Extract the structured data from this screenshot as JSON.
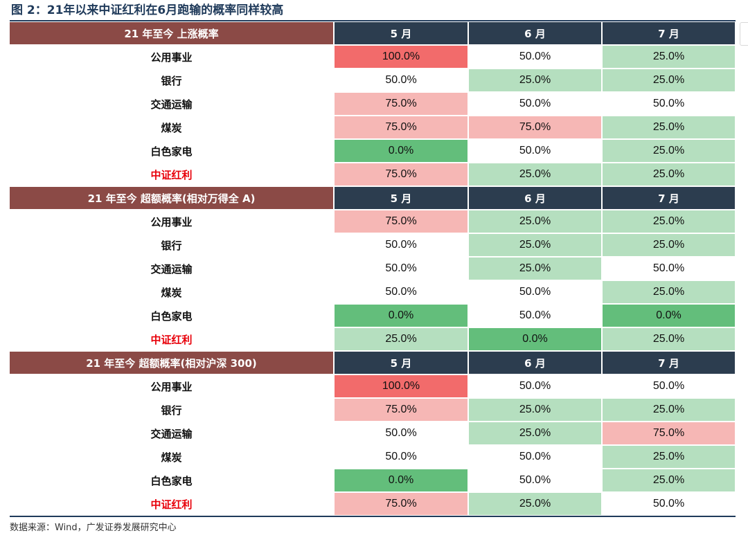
{
  "title": "图 2：21年以来中证红利在6月跑输的概率同样较高",
  "source": "数据来源：Wind，广发证券发展研究中心",
  "months": [
    "5 月",
    "6 月",
    "7 月"
  ],
  "colors": {
    "header_section": "#8b4a46",
    "header_month": "#2c3d4f",
    "red_strong": "#f26b6b",
    "red_light": "#f6b7b5",
    "green_light": "#b5dfbf",
    "green_strong": "#63be7b",
    "none": "#ffffff",
    "highlight_text": "#e8000a"
  },
  "sections": [
    {
      "title": "21 年至今 上涨概率",
      "rows": [
        {
          "label": "公用事业",
          "highlight": false,
          "values": [
            "100.0%",
            "50.0%",
            "25.0%"
          ],
          "fills": [
            "red_strong",
            "none",
            "green_light"
          ]
        },
        {
          "label": "银行",
          "highlight": false,
          "values": [
            "50.0%",
            "25.0%",
            "25.0%"
          ],
          "fills": [
            "none",
            "green_light",
            "green_light"
          ]
        },
        {
          "label": "交通运输",
          "highlight": false,
          "values": [
            "75.0%",
            "50.0%",
            "50.0%"
          ],
          "fills": [
            "red_light",
            "none",
            "none"
          ]
        },
        {
          "label": "煤炭",
          "highlight": false,
          "values": [
            "75.0%",
            "75.0%",
            "25.0%"
          ],
          "fills": [
            "red_light",
            "red_light",
            "green_light"
          ]
        },
        {
          "label": "白色家电",
          "highlight": false,
          "values": [
            "0.0%",
            "50.0%",
            "25.0%"
          ],
          "fills": [
            "green_strong",
            "none",
            "green_light"
          ]
        },
        {
          "label": "中证红利",
          "highlight": true,
          "values": [
            "75.0%",
            "25.0%",
            "25.0%"
          ],
          "fills": [
            "red_light",
            "green_light",
            "green_light"
          ]
        }
      ]
    },
    {
      "title": "21 年至今 超额概率(相对万得全 A)",
      "rows": [
        {
          "label": "公用事业",
          "highlight": false,
          "values": [
            "75.0%",
            "25.0%",
            "25.0%"
          ],
          "fills": [
            "red_light",
            "green_light",
            "green_light"
          ]
        },
        {
          "label": "银行",
          "highlight": false,
          "values": [
            "50.0%",
            "25.0%",
            "25.0%"
          ],
          "fills": [
            "none",
            "green_light",
            "green_light"
          ]
        },
        {
          "label": "交通运输",
          "highlight": false,
          "values": [
            "50.0%",
            "25.0%",
            "50.0%"
          ],
          "fills": [
            "none",
            "green_light",
            "none"
          ]
        },
        {
          "label": "煤炭",
          "highlight": false,
          "values": [
            "50.0%",
            "50.0%",
            "25.0%"
          ],
          "fills": [
            "none",
            "none",
            "green_light"
          ]
        },
        {
          "label": "白色家电",
          "highlight": false,
          "values": [
            "0.0%",
            "50.0%",
            "0.0%"
          ],
          "fills": [
            "green_strong",
            "none",
            "green_strong"
          ]
        },
        {
          "label": "中证红利",
          "highlight": true,
          "values": [
            "25.0%",
            "0.0%",
            "25.0%"
          ],
          "fills": [
            "green_light",
            "green_strong",
            "green_light"
          ]
        }
      ]
    },
    {
      "title": "21 年至今 超额概率(相对沪深 300)",
      "rows": [
        {
          "label": "公用事业",
          "highlight": false,
          "values": [
            "100.0%",
            "50.0%",
            "50.0%"
          ],
          "fills": [
            "red_strong",
            "none",
            "none"
          ]
        },
        {
          "label": "银行",
          "highlight": false,
          "values": [
            "75.0%",
            "25.0%",
            "25.0%"
          ],
          "fills": [
            "red_light",
            "green_light",
            "green_light"
          ]
        },
        {
          "label": "交通运输",
          "highlight": false,
          "values": [
            "50.0%",
            "25.0%",
            "75.0%"
          ],
          "fills": [
            "none",
            "green_light",
            "red_light"
          ]
        },
        {
          "label": "煤炭",
          "highlight": false,
          "values": [
            "50.0%",
            "50.0%",
            "25.0%"
          ],
          "fills": [
            "none",
            "none",
            "green_light"
          ]
        },
        {
          "label": "白色家电",
          "highlight": false,
          "values": [
            "0.0%",
            "50.0%",
            "25.0%"
          ],
          "fills": [
            "green_strong",
            "none",
            "green_light"
          ]
        },
        {
          "label": "中证红利",
          "highlight": true,
          "values": [
            "75.0%",
            "25.0%",
            "50.0%"
          ],
          "fills": [
            "red_light",
            "green_light",
            "none"
          ]
        }
      ]
    }
  ]
}
